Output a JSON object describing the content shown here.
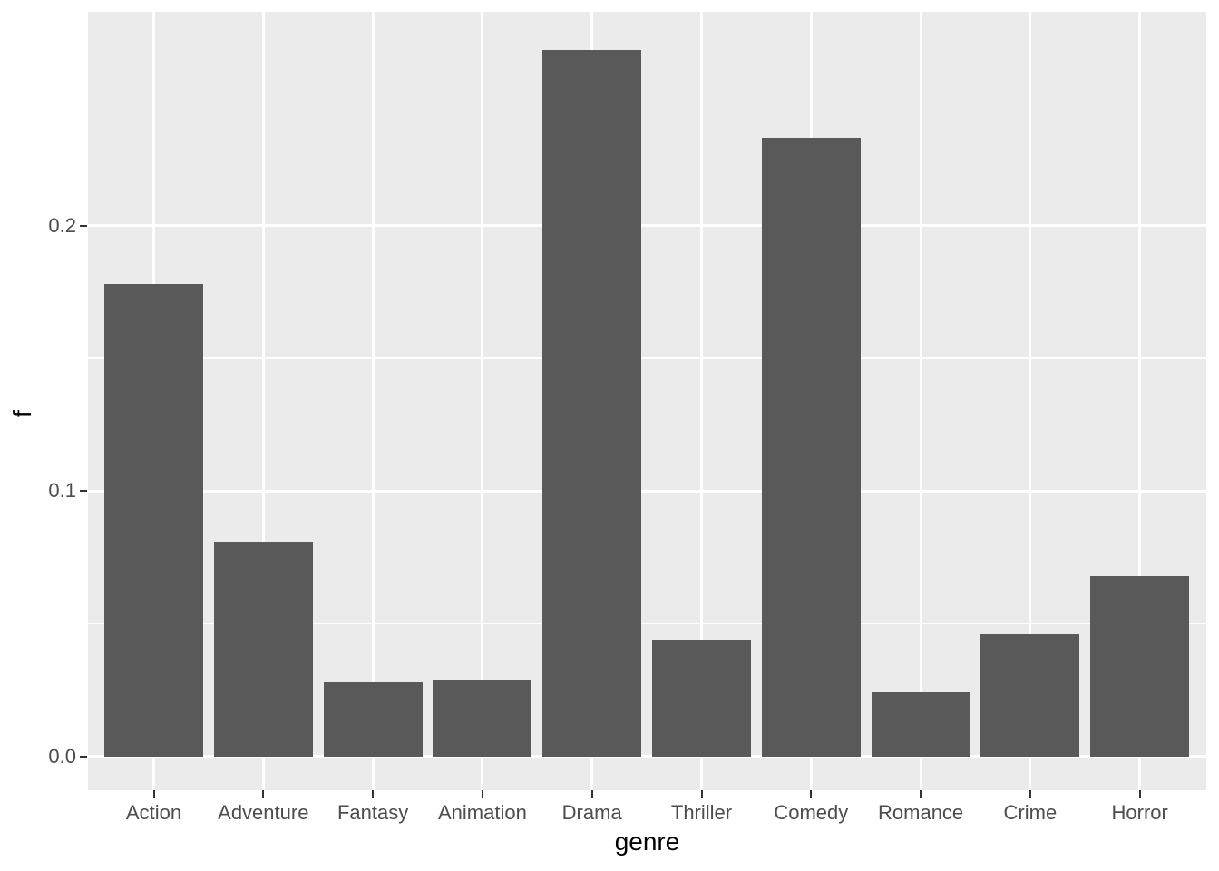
{
  "chart_data": {
    "type": "bar",
    "title": "",
    "xlabel": "genre",
    "ylabel": "f",
    "categories": [
      "Action",
      "Adventure",
      "Fantasy",
      "Animation",
      "Drama",
      "Thriller",
      "Comedy",
      "Romance",
      "Crime",
      "Horror"
    ],
    "values": [
      0.178,
      0.081,
      0.028,
      0.029,
      0.266,
      0.044,
      0.233,
      0.024,
      0.046,
      0.068
    ],
    "y_ticks": [
      0.0,
      0.1,
      0.2
    ],
    "y_tick_labels": [
      "0.0",
      "0.1",
      "0.2"
    ],
    "y_minor_ticks": [
      0.05,
      0.15,
      0.25
    ],
    "ylim": [
      -0.0133,
      0.2805
    ],
    "grid": "major-and-minor-horizontal, major-vertical-at-category-centers",
    "legend": "none",
    "theme": "ggplot2-grey",
    "colors": {
      "bar_fill": "#595959",
      "panel_background": "#EBEBEB",
      "gridline": "#FFFFFF",
      "axis_text": "#4D4D4D",
      "axis_title": "#000000",
      "tick_mark": "#333333",
      "page_background": "#FFFFFF"
    }
  }
}
